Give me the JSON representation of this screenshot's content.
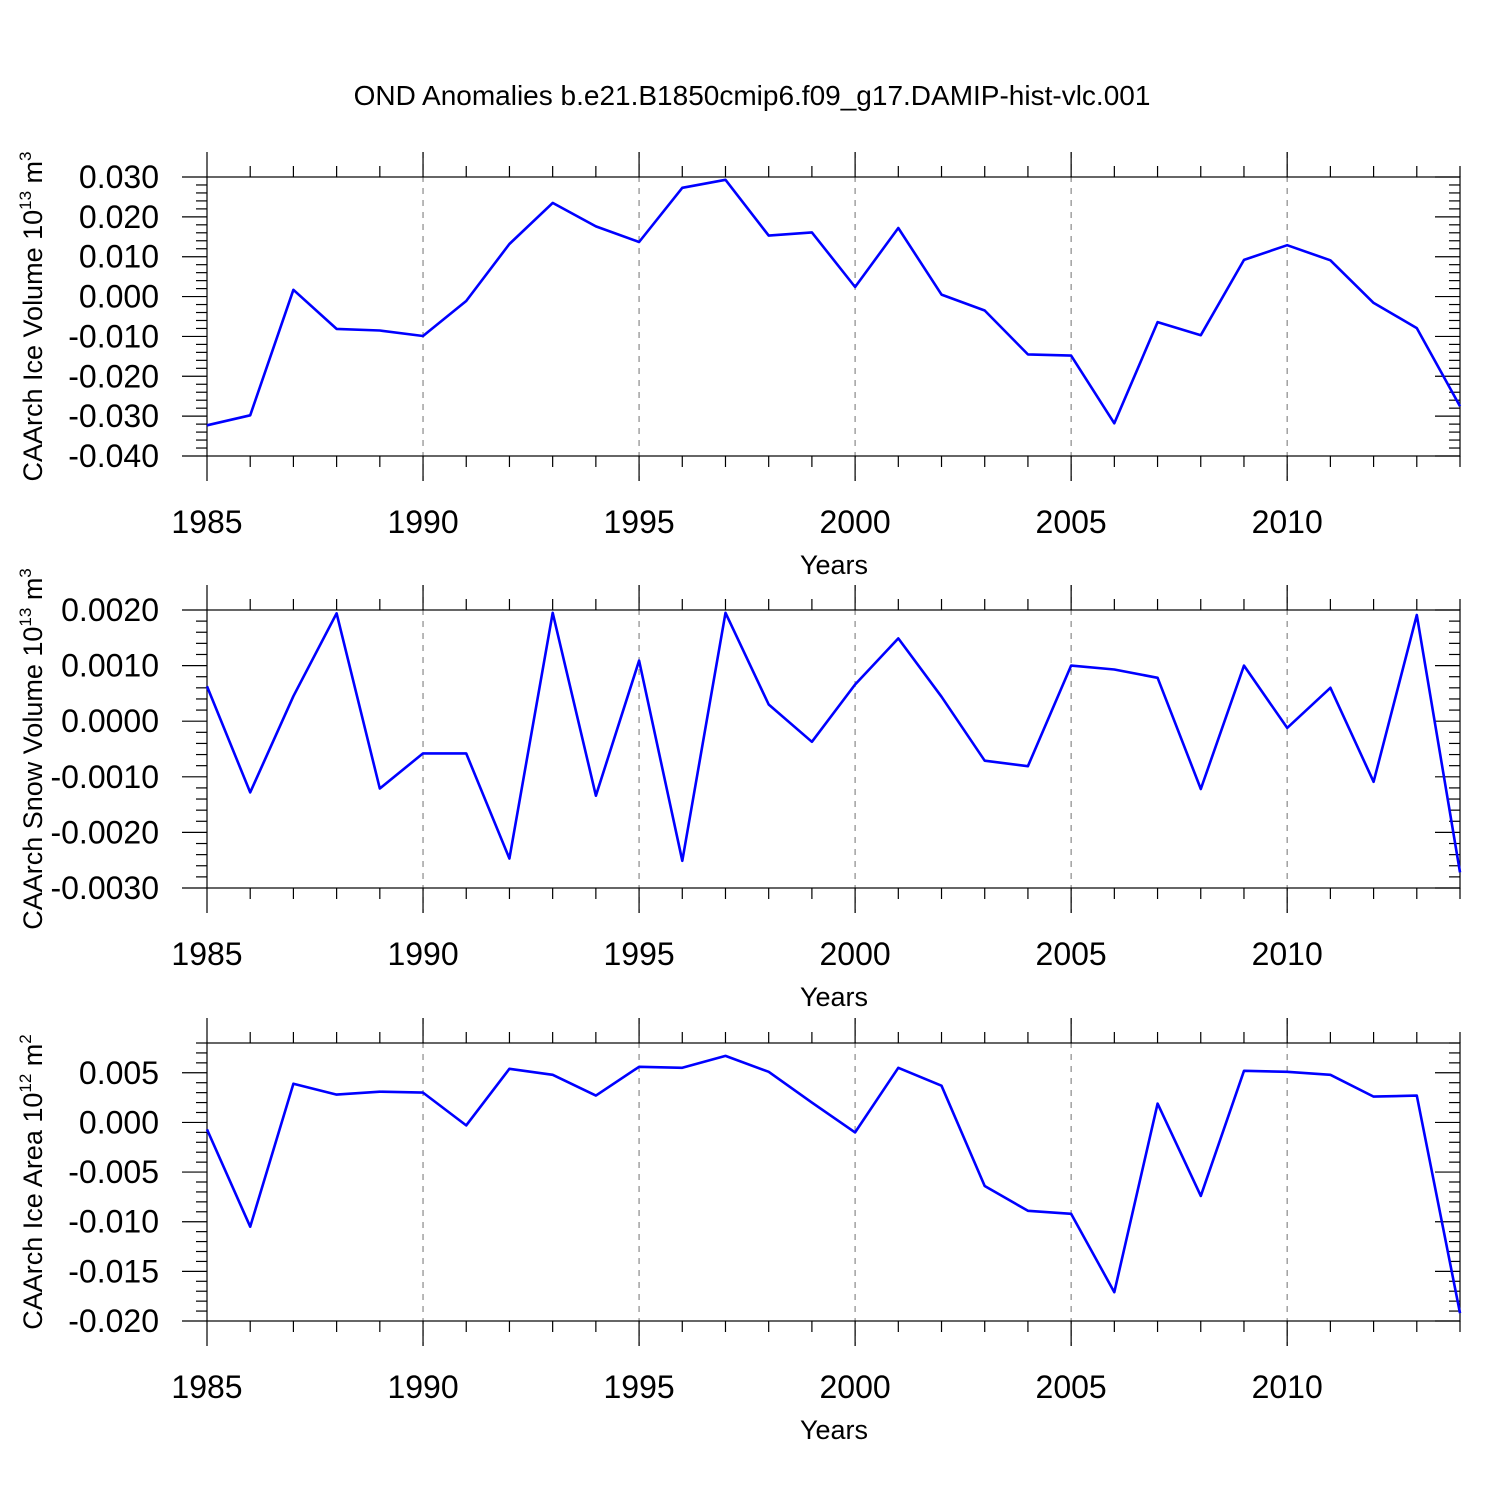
{
  "title": "OND Anomalies b.e21.B1850cmip6.f09_g17.DAMIP-hist-vlc.001",
  "colors": {
    "line": "#0000ff",
    "grid": "#8a8a8a",
    "axis": "#000000"
  },
  "chart_data": [
    {
      "type": "line",
      "ylabel": {
        "text": "CAArch Ice Volume 10",
        "exp": "13",
        "unit": " m",
        "unit_exp": "3"
      },
      "xlabel": "Years",
      "xlim": [
        1985,
        2014
      ],
      "ylim": [
        -0.04,
        0.03
      ],
      "yticks": [
        -0.04,
        -0.03,
        -0.02,
        -0.01,
        0.0,
        0.01,
        0.02,
        0.03
      ],
      "ytick_labels": [
        "-0.040",
        "-0.030",
        "-0.020",
        "-0.010",
        "0.000",
        "0.010",
        "0.020",
        "0.030"
      ],
      "yminor_step": 0.002,
      "xticks": [
        1985,
        1990,
        1995,
        2000,
        2005,
        2010
      ],
      "xtick_labels": [
        "1985",
        "1990",
        "1995",
        "2000",
        "2005",
        "2010"
      ],
      "grid_x": [
        1990,
        1995,
        2000,
        2005,
        2010
      ],
      "x": [
        1985,
        1986,
        1987,
        1988,
        1989,
        1990,
        1991,
        1992,
        1993,
        1994,
        1995,
        1996,
        1997,
        1998,
        1999,
        2000,
        2001,
        2002,
        2003,
        2004,
        2005,
        2006,
        2007,
        2008,
        2009,
        2010,
        2011,
        2012,
        2013,
        2014
      ],
      "series": [
        {
          "name": "Ice Volume",
          "values": [
            -0.0323,
            -0.0298,
            0.0017,
            -0.0081,
            -0.0085,
            -0.0099,
            -0.0011,
            0.0132,
            0.0235,
            0.0176,
            0.0137,
            0.0273,
            0.0293,
            0.0153,
            0.0161,
            0.0024,
            0.0172,
            0.0005,
            -0.0035,
            -0.0145,
            -0.0148,
            -0.0318,
            -0.0064,
            -0.0097,
            0.0092,
            0.0129,
            0.0091,
            -0.0016,
            -0.0079,
            -0.0275
          ]
        }
      ]
    },
    {
      "type": "line",
      "ylabel": {
        "text": "CAArch Snow Volume 10",
        "exp": "13",
        "unit": " m",
        "unit_exp": "3"
      },
      "xlabel": "Years",
      "xlim": [
        1985,
        2014
      ],
      "ylim": [
        -0.003,
        0.002
      ],
      "yticks": [
        -0.003,
        -0.002,
        -0.001,
        0.0,
        0.001,
        0.002
      ],
      "ytick_labels": [
        "-0.0030",
        "-0.0020",
        "-0.0010",
        "0.0000",
        "0.0010",
        "0.0020"
      ],
      "yminor_step": 0.0002,
      "xticks": [
        1985,
        1990,
        1995,
        2000,
        2005,
        2010
      ],
      "xtick_labels": [
        "1985",
        "1990",
        "1995",
        "2000",
        "2005",
        "2010"
      ],
      "grid_x": [
        1990,
        1995,
        2000,
        2005,
        2010
      ],
      "x": [
        1985,
        1986,
        1987,
        1988,
        1989,
        1990,
        1991,
        1992,
        1993,
        1994,
        1995,
        1996,
        1997,
        1998,
        1999,
        2000,
        2001,
        2002,
        2003,
        2004,
        2005,
        2006,
        2007,
        2008,
        2009,
        2010,
        2011,
        2012,
        2013,
        2014
      ],
      "series": [
        {
          "name": "Snow Volume",
          "values": [
            0.00063,
            -0.00128,
            0.00045,
            0.00194,
            -0.00121,
            -0.00058,
            -0.00058,
            -0.00247,
            0.00195,
            -0.00134,
            0.00109,
            -0.00251,
            0.00195,
            0.0003,
            -0.00037,
            0.00066,
            0.00149,
            0.00044,
            -0.00071,
            -0.00081,
            0.001,
            0.00093,
            0.00078,
            -0.00122,
            0.001,
            -0.00012,
            0.0006,
            -0.00109,
            0.00191,
            -0.00272
          ]
        }
      ]
    },
    {
      "type": "line",
      "ylabel": {
        "text": "CAArch Ice Area 10",
        "exp": "12",
        "unit": " m",
        "unit_exp": "2"
      },
      "xlabel": "Years",
      "xlim": [
        1985,
        2014
      ],
      "ylim": [
        -0.02,
        0.008
      ],
      "yticks": [
        -0.02,
        -0.015,
        -0.01,
        -0.005,
        0.0,
        0.005
      ],
      "ytick_labels": [
        "-0.020",
        "-0.015",
        "-0.010",
        "-0.005",
        "0.000",
        "0.005"
      ],
      "yminor_step": 0.001,
      "xticks": [
        1985,
        1990,
        1995,
        2000,
        2005,
        2010
      ],
      "xtick_labels": [
        "1985",
        "1990",
        "1995",
        "2000",
        "2005",
        "2010"
      ],
      "grid_x": [
        1990,
        1995,
        2000,
        2005,
        2010
      ],
      "x": [
        1985,
        1986,
        1987,
        1988,
        1989,
        1990,
        1991,
        1992,
        1993,
        1994,
        1995,
        1996,
        1997,
        1998,
        1999,
        2000,
        2001,
        2002,
        2003,
        2004,
        2005,
        2006,
        2007,
        2008,
        2009,
        2010,
        2011,
        2012,
        2013,
        2014
      ],
      "series": [
        {
          "name": "Ice Area",
          "values": [
            -0.0007,
            -0.0105,
            0.0039,
            0.0028,
            0.0031,
            0.003,
            -0.0003,
            0.0054,
            0.0048,
            0.0027,
            0.0056,
            0.0055,
            0.0067,
            0.0051,
            0.002,
            -0.001,
            0.0055,
            0.0037,
            -0.0064,
            -0.0089,
            -0.0092,
            -0.0171,
            0.0019,
            -0.0074,
            0.0052,
            0.0051,
            0.0048,
            0.0026,
            0.0027,
            -0.0192
          ]
        }
      ]
    }
  ]
}
